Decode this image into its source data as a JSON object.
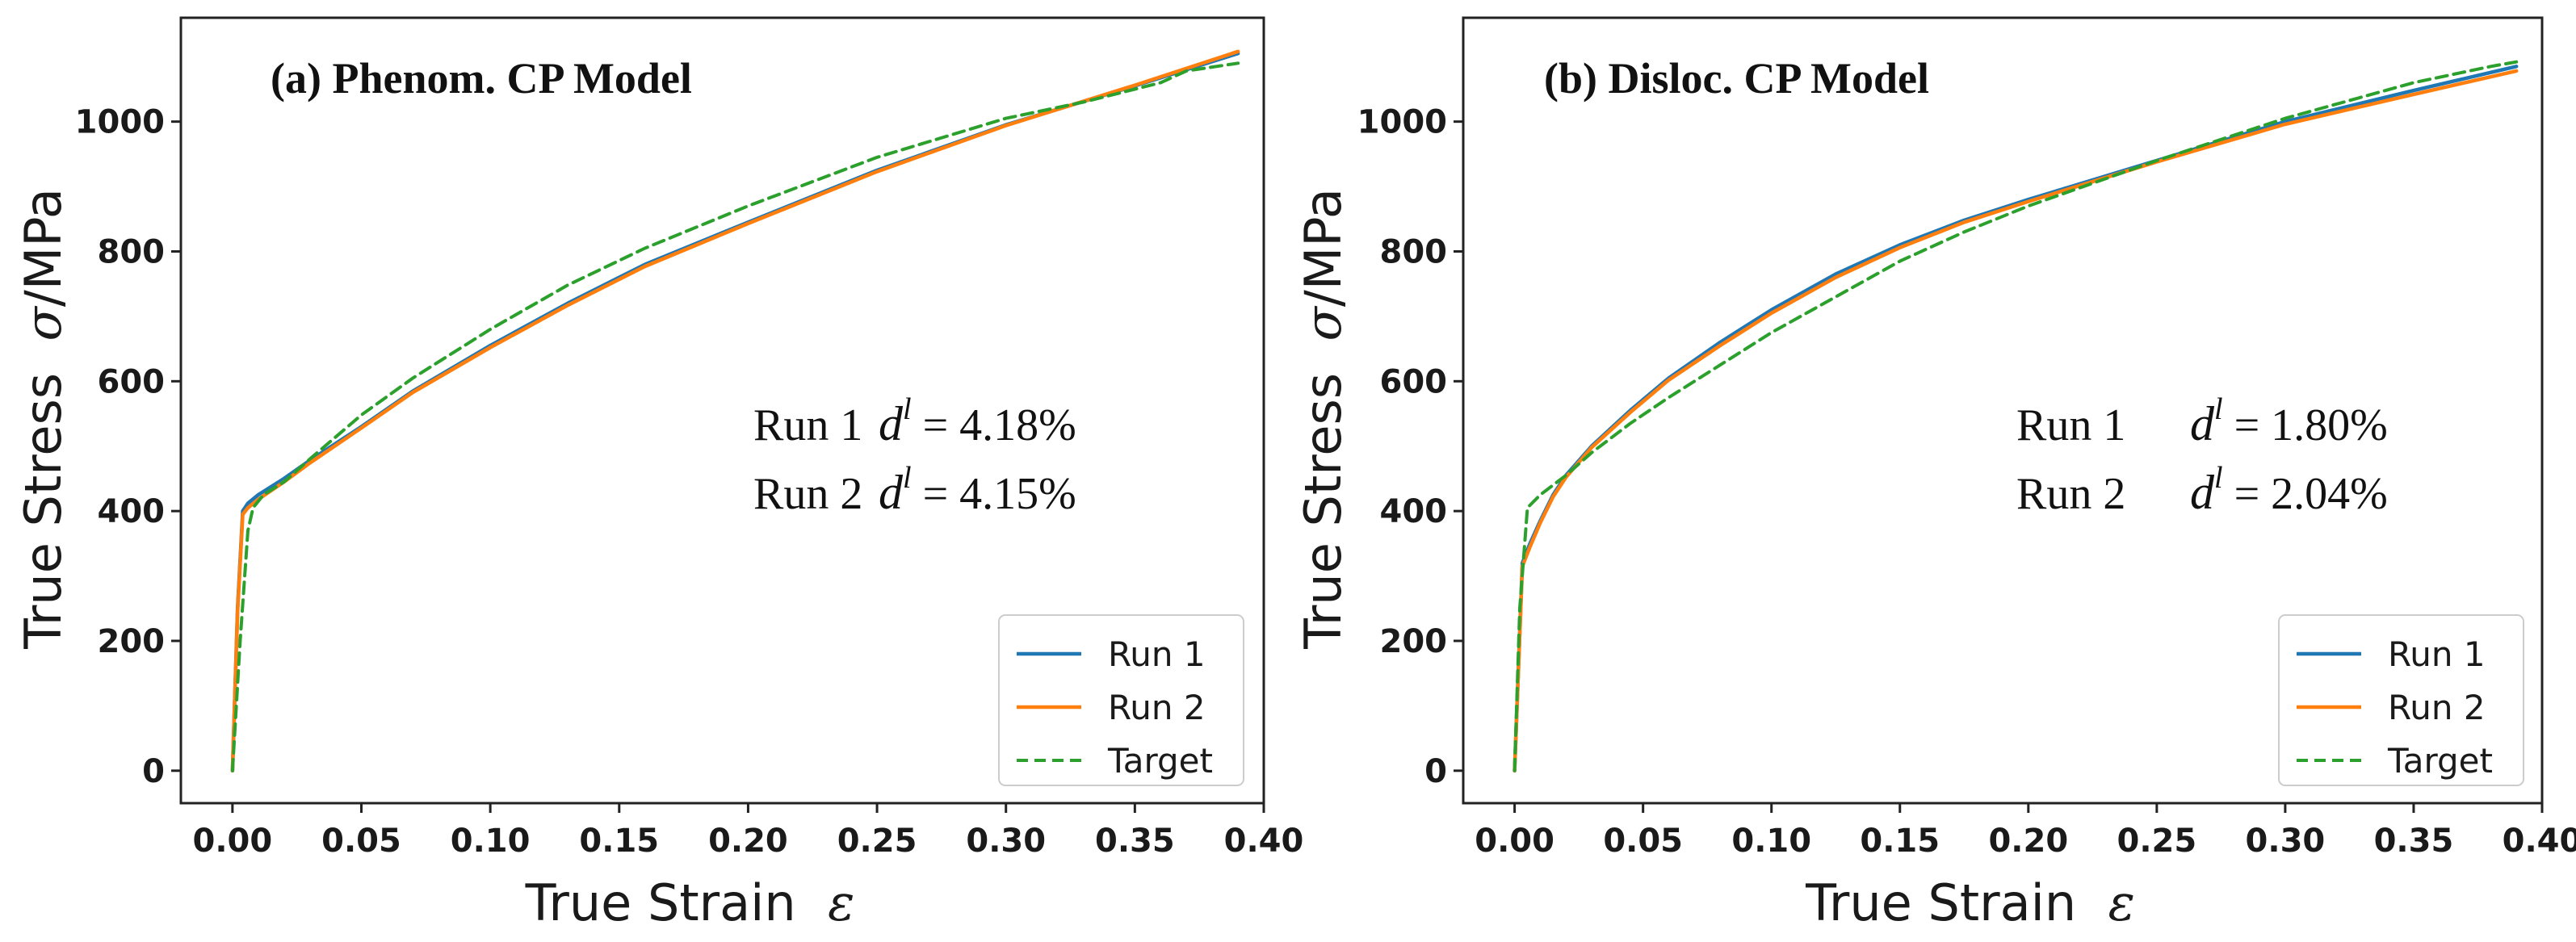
{
  "chart_data": [
    {
      "type": "line",
      "title": "(a) Phenom. CP Model",
      "xlabel": "True Strain",
      "xlabel_symbol": "ε",
      "ylabel": "True Stress",
      "ylabel_symbol": "σ",
      "ylabel_unit": "/MPa",
      "xlim": [
        -0.02,
        0.4
      ],
      "ylim": [
        -50,
        1160
      ],
      "xticks": [
        0.0,
        0.05,
        0.1,
        0.15,
        0.2,
        0.25,
        0.3,
        0.35,
        0.4
      ],
      "xtick_labels": [
        "0.00",
        "0.05",
        "0.10",
        "0.15",
        "0.20",
        "0.25",
        "0.30",
        "0.35",
        "0.40"
      ],
      "yticks": [
        0,
        200,
        400,
        600,
        800,
        1000
      ],
      "ytick_labels": [
        "0",
        "200",
        "400",
        "600",
        "800",
        "1000"
      ],
      "legend_position": "bottom-right",
      "annotations": [
        {
          "run": "Run 1",
          "symbol": "d",
          "sup": "l",
          "value": " = 4.18%"
        },
        {
          "run": "Run 2",
          "symbol": "d",
          "sup": "l",
          "value": " = 4.15%"
        }
      ],
      "series": [
        {
          "name": "Run 1",
          "color": "#1f77b4",
          "style": "solid",
          "x": [
            0.0,
            0.002,
            0.004,
            0.006,
            0.01,
            0.02,
            0.03,
            0.05,
            0.07,
            0.1,
            0.13,
            0.16,
            0.2,
            0.25,
            0.3,
            0.35,
            0.39
          ],
          "y": [
            0,
            250,
            400,
            412,
            425,
            450,
            478,
            530,
            585,
            655,
            720,
            780,
            845,
            925,
            995,
            1055,
            1105
          ]
        },
        {
          "name": "Run 2",
          "color": "#ff7f0e",
          "style": "solid",
          "x": [
            0.0,
            0.002,
            0.004,
            0.006,
            0.01,
            0.02,
            0.03,
            0.05,
            0.07,
            0.1,
            0.13,
            0.16,
            0.2,
            0.25,
            0.3,
            0.35,
            0.39
          ],
          "y": [
            0,
            245,
            395,
            405,
            418,
            445,
            474,
            528,
            583,
            652,
            717,
            777,
            843,
            923,
            994,
            1056,
            1108
          ]
        },
        {
          "name": "Target",
          "color": "#2ca02c",
          "style": "dashed",
          "x": [
            0.0,
            0.003,
            0.006,
            0.008,
            0.012,
            0.02,
            0.03,
            0.05,
            0.07,
            0.1,
            0.13,
            0.16,
            0.2,
            0.25,
            0.3,
            0.33,
            0.36,
            0.37,
            0.39
          ],
          "y": [
            0,
            200,
            370,
            405,
            425,
            445,
            480,
            548,
            605,
            680,
            748,
            805,
            870,
            945,
            1005,
            1030,
            1060,
            1078,
            1090
          ]
        }
      ]
    },
    {
      "type": "line",
      "title": "(b) Disloc. CP Model",
      "xlabel": "True Strain",
      "xlabel_symbol": "ε",
      "ylabel": "True Stress",
      "ylabel_symbol": "σ",
      "ylabel_unit": "/MPa",
      "xlim": [
        -0.02,
        0.4
      ],
      "ylim": [
        -50,
        1160
      ],
      "xticks": [
        0.0,
        0.05,
        0.1,
        0.15,
        0.2,
        0.25,
        0.3,
        0.35,
        0.4
      ],
      "xtick_labels": [
        "0.00",
        "0.05",
        "0.10",
        "0.15",
        "0.20",
        "0.25",
        "0.30",
        "0.35",
        "0.40"
      ],
      "yticks": [
        0,
        200,
        400,
        600,
        800,
        1000
      ],
      "ytick_labels": [
        "0",
        "200",
        "400",
        "600",
        "800",
        "1000"
      ],
      "legend_position": "bottom-right",
      "annotations": [
        {
          "run": "Run 1",
          "symbol": "d",
          "sup": "l",
          "value": " = 1.80%"
        },
        {
          "run": "Run 2",
          "symbol": "d",
          "sup": "l",
          "value": " = 2.04%"
        }
      ],
      "series": [
        {
          "name": "Run 1",
          "color": "#1f77b4",
          "style": "solid",
          "x": [
            0.0,
            0.003,
            0.006,
            0.01,
            0.015,
            0.02,
            0.03,
            0.045,
            0.06,
            0.08,
            0.1,
            0.125,
            0.15,
            0.175,
            0.2,
            0.25,
            0.3,
            0.35,
            0.39
          ],
          "y": [
            0,
            320,
            350,
            385,
            425,
            455,
            500,
            555,
            605,
            660,
            710,
            765,
            810,
            848,
            880,
            940,
            1000,
            1048,
            1085
          ]
        },
        {
          "name": "Run 2",
          "color": "#ff7f0e",
          "style": "solid",
          "x": [
            0.0,
            0.003,
            0.006,
            0.01,
            0.015,
            0.02,
            0.03,
            0.045,
            0.06,
            0.08,
            0.1,
            0.125,
            0.15,
            0.175,
            0.2,
            0.25,
            0.3,
            0.35,
            0.39
          ],
          "y": [
            0,
            315,
            345,
            382,
            422,
            452,
            498,
            552,
            602,
            655,
            705,
            760,
            806,
            845,
            877,
            938,
            996,
            1042,
            1078
          ]
        },
        {
          "name": "Target",
          "color": "#2ca02c",
          "style": "dashed",
          "x": [
            0.0,
            0.002,
            0.005,
            0.01,
            0.02,
            0.03,
            0.045,
            0.06,
            0.08,
            0.1,
            0.125,
            0.15,
            0.175,
            0.2,
            0.25,
            0.3,
            0.35,
            0.38,
            0.39
          ],
          "y": [
            0,
            250,
            405,
            425,
            455,
            490,
            535,
            575,
            625,
            675,
            730,
            785,
            830,
            870,
            940,
            1005,
            1060,
            1085,
            1092
          ]
        }
      ]
    }
  ]
}
